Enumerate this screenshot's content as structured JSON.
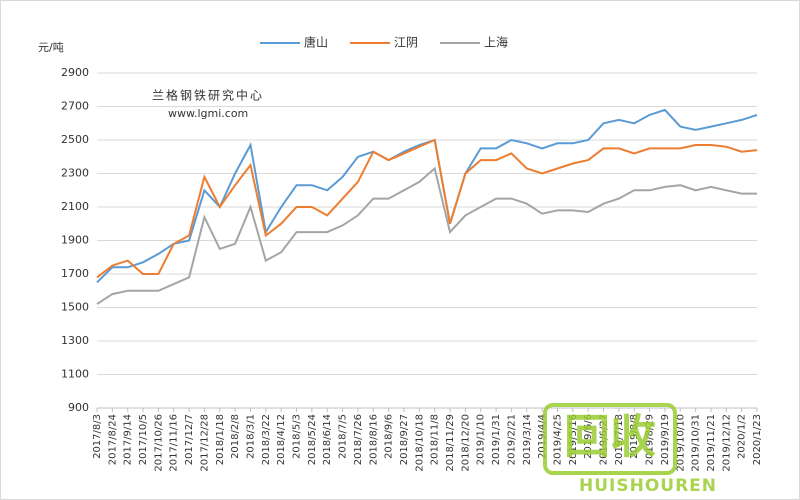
{
  "chart_data": {
    "type": "line",
    "y_label": "元/吨",
    "annotations": [
      "兰格钢铁研究中心",
      "www.lgmi.com"
    ],
    "watermark": [
      "回收",
      "HUISHOUREN"
    ],
    "categories": [
      "2017/8/3",
      "2017/8/24",
      "2017/9/14",
      "2017/10/5",
      "2017/10/26",
      "2017/11/16",
      "2017/12/7",
      "2017/12/28",
      "2018/1/18",
      "2018/2/8",
      "2018/3/1",
      "2018/3/22",
      "2018/4/12",
      "2018/5/3",
      "2018/5/24",
      "2018/6/14",
      "2018/7/5",
      "2018/7/26",
      "2018/8/16",
      "2018/9/6",
      "2018/9/27",
      "2018/10/18",
      "2018/11/8",
      "2018/11/29",
      "2018/12/20",
      "2019/1/10",
      "2019/1/31",
      "2019/2/21",
      "2019/3/14",
      "2019/4/4",
      "2019/4/25",
      "2019/5/16",
      "2019/6/6",
      "2019/6/27",
      "2019/7/18",
      "2019/8/8",
      "2019/8/29",
      "2019/9/19",
      "2019/10/10",
      "2019/10/31",
      "2019/11/21",
      "2019/12/12",
      "2020/1/2",
      "2020/1/23"
    ],
    "series": [
      {
        "name": "唐山",
        "color": "#5b9bd5",
        "values": [
          1650,
          1740,
          1740,
          1770,
          1820,
          1880,
          1900,
          2200,
          2100,
          2300,
          2470,
          1950,
          2100,
          2230,
          2230,
          2200,
          2280,
          2400,
          2430,
          2380,
          2430,
          2470,
          2500,
          2000,
          2300,
          2450,
          2450,
          2500,
          2480,
          2450,
          2480,
          2480,
          2500,
          2600,
          2620,
          2600,
          2650,
          2680,
          2580,
          2560,
          2580,
          2600,
          2620,
          2650
        ]
      },
      {
        "name": "江阴",
        "color": "#ed7d31",
        "values": [
          1680,
          1750,
          1780,
          1700,
          1700,
          1880,
          1930,
          2280,
          2100,
          2230,
          2350,
          1930,
          2000,
          2100,
          2100,
          2050,
          2150,
          2250,
          2430,
          2380,
          2420,
          2460,
          2500,
          2000,
          2300,
          2380,
          2380,
          2420,
          2330,
          2300,
          2330,
          2360,
          2380,
          2450,
          2450,
          2420,
          2450,
          2450,
          2450,
          2470,
          2470,
          2460,
          2430,
          2440
        ]
      },
      {
        "name": "上海",
        "color": "#a5a5a5",
        "values": [
          1520,
          1580,
          1600,
          1600,
          1600,
          1640,
          1680,
          2040,
          1850,
          1880,
          2100,
          1780,
          1830,
          1950,
          1950,
          1950,
          1990,
          2050,
          2150,
          2150,
          2200,
          2250,
          2330,
          1950,
          2050,
          2100,
          2150,
          2150,
          2120,
          2060,
          2080,
          2080,
          2070,
          2120,
          2150,
          2200,
          2200,
          2220,
          2230,
          2200,
          2220,
          2200,
          2180,
          2180
        ]
      }
    ],
    "ylim": [
      900,
      2900
    ],
    "yticks": [
      900,
      1100,
      1300,
      1500,
      1700,
      1900,
      2100,
      2300,
      2500,
      2700,
      2900
    ],
    "grid": true
  }
}
